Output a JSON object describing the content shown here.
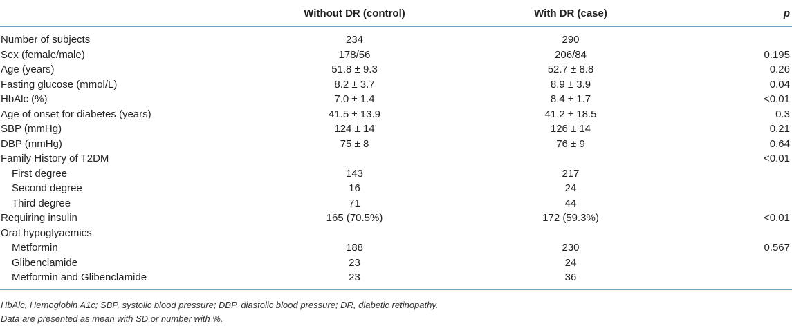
{
  "header": {
    "col1": "",
    "col2": "Without DR (control)",
    "col3": "With DR (case)",
    "col4": "p"
  },
  "rows": [
    {
      "label": "Number of subjects",
      "control": "234",
      "case": "290",
      "p": ""
    },
    {
      "label": "Sex (female/male)",
      "control": "178/56",
      "case": "206/84",
      "p": "0.195"
    },
    {
      "label": "Age (years)",
      "control": "51.8 ± 9.3",
      "case": "52.7 ± 8.8",
      "p": "0.26"
    },
    {
      "label": "Fasting glucose (mmol/L)",
      "control": "8.2 ± 3.7",
      "case": "8.9 ± 3.9",
      "p": "0.04"
    },
    {
      "label": "HbAlc (%)",
      "control": "7.0 ± 1.4",
      "case": "8.4 ± 1.7",
      "p": "<0.01"
    },
    {
      "label": "Age of onset for diabetes (years)",
      "control": "41.5 ± 13.9",
      "case": "41.2 ± 18.5",
      "p": "0.3"
    },
    {
      "label": "SBP (mmHg)",
      "control": "124 ± 14",
      "case": "126 ± 14",
      "p": "0.21"
    },
    {
      "label": "DBP (mmHg)",
      "control": "75 ± 8",
      "case": "76 ± 9",
      "p": "0.64"
    },
    {
      "label": "Family History of T2DM",
      "control": "",
      "case": "",
      "p": "<0.01"
    },
    {
      "label": "First degree",
      "control": "143",
      "case": "217",
      "p": ""
    },
    {
      "label": "Second degree",
      "control": "16",
      "case": "24",
      "p": ""
    },
    {
      "label": "Third degree",
      "control": "71",
      "case": "44",
      "p": ""
    },
    {
      "label": "Requiring insulin",
      "control": "165 (70.5%)",
      "case": "172 (59.3%)",
      "p": "<0.01"
    },
    {
      "label": "Oral hypoglyaemics",
      "control": "",
      "case": "",
      "p": ""
    },
    {
      "label": "Metformin",
      "control": "188",
      "case": "230",
      "p": "0.567"
    },
    {
      "label": "Glibenclamide",
      "control": "23",
      "case": "24",
      "p": ""
    },
    {
      "label": "Metformin and Glibenclamide",
      "control": "23",
      "case": "36",
      "p": ""
    }
  ],
  "footnotes": {
    "line1": "HbAlc, Hemoglobin A1c; SBP, systolic blood pressure; DBP, diastolic blood pressure; DR, diabetic retinopathy.",
    "line2": "Data are presented as mean with SD or number with %."
  }
}
